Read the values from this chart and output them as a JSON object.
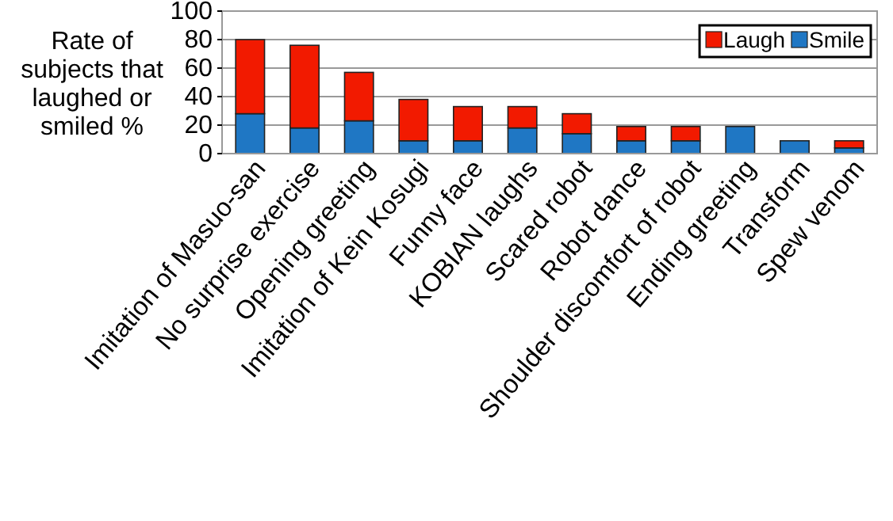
{
  "chart_data": {
    "type": "bar",
    "stacked": true,
    "ylabel": "Rate of subjects that laughed or smiled %",
    "categories": [
      "Imitation of Masuo-san",
      "No surprise exercise",
      "Opening greeting",
      "Imitation of Kein Kosugi",
      "Funny face",
      "KOBIAN laughs",
      "Scared robot",
      "Robot dance",
      "Shoulder discomfort of robot",
      "Ending greeting",
      "Transform",
      "Spew venom"
    ],
    "series": [
      {
        "name": "Smile",
        "color": "#1f77c4",
        "values": [
          28,
          18,
          23,
          9,
          9,
          18,
          14,
          9,
          9,
          19,
          9,
          4
        ]
      },
      {
        "name": "Laugh",
        "color": "#f21a00",
        "values": [
          52,
          58,
          34,
          29,
          24,
          15,
          14,
          10,
          10,
          0,
          0,
          5
        ]
      }
    ],
    "ylim": [
      0,
      100
    ],
    "yticks": [
      0,
      20,
      40,
      60,
      80,
      100
    ],
    "grid": "y",
    "legend": "top right"
  }
}
